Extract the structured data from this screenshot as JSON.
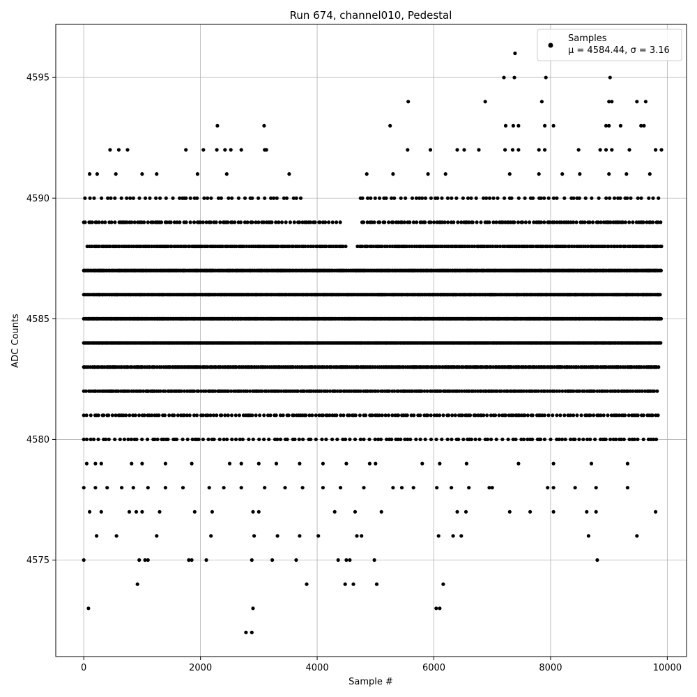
{
  "chart_data": {
    "type": "scatter",
    "title": "Run 674, channel010, Pedestal",
    "xlabel": "Sample #",
    "ylabel": "ADC Counts",
    "xlim": [
      -480,
      10330
    ],
    "ylim": [
      4571,
      4597.2
    ],
    "xticks": [
      0,
      2000,
      4000,
      6000,
      8000,
      10000
    ],
    "yticks": [
      4575,
      4580,
      4585,
      4590,
      4595
    ],
    "grid": true,
    "legend_position": "top-right",
    "series": [
      {
        "name": "Samples",
        "stat_label": "μ = 4584.44, σ = 3.16",
        "color": "#000000",
        "n_samples": 10000,
        "x_range": [
          0,
          9900
        ],
        "level_bands": [
          {
            "adc": 4580,
            "x": [
              0,
              9850
            ],
            "step": 65
          },
          {
            "adc": 4581,
            "x": [
              0,
              9850
            ],
            "step": 45
          },
          {
            "adc": 4582,
            "x": [
              0,
              9850
            ],
            "step": 32
          },
          {
            "adc": 4583,
            "x": [
              0,
              9850
            ],
            "step": 26
          },
          {
            "adc": 4584,
            "x": [
              0,
              9900
            ],
            "step": 18
          },
          {
            "adc": 4585,
            "x": [
              0,
              9900
            ],
            "step": 18
          },
          {
            "adc": 4586,
            "x": [
              0,
              9900
            ],
            "step": 18
          },
          {
            "adc": 4587,
            "x": [
              0,
              9900
            ],
            "step": 20
          },
          {
            "adc": 4588,
            "x": [
              60,
              9900
            ],
            "step": 30
          },
          {
            "adc": 4589,
            "x": [
              0,
              9900
            ],
            "step": 45
          },
          {
            "adc": 4590,
            "x": [
              20,
              9850
            ],
            "step": 80
          }
        ],
        "level_gaps": [
          {
            "adc": 4589,
            "x": [
              4400,
              4750
            ]
          },
          {
            "adc": 4590,
            "x": [
              3800,
              4700
            ]
          },
          {
            "adc": 4588,
            "x": [
              4500,
              4650
            ]
          }
        ],
        "points": [
          [
            0,
            4575
          ],
          [
            80,
            4573
          ],
          [
            220,
            4576
          ],
          [
            560,
            4576
          ],
          [
            780,
            4577
          ],
          [
            920,
            4574
          ],
          [
            950,
            4575
          ],
          [
            1050,
            4575
          ],
          [
            1100,
            4575
          ],
          [
            1250,
            4576
          ],
          [
            1800,
            4575
          ],
          [
            1850,
            4575
          ],
          [
            2100,
            4575
          ],
          [
            2180,
            4576
          ],
          [
            2780,
            4572
          ],
          [
            2880,
            4572
          ],
          [
            2900,
            4573
          ],
          [
            2880,
            4575
          ],
          [
            2920,
            4576
          ],
          [
            3230,
            4575
          ],
          [
            3320,
            4576
          ],
          [
            3640,
            4575
          ],
          [
            3700,
            4576
          ],
          [
            3820,
            4574
          ],
          [
            4020,
            4576
          ],
          [
            4360,
            4575
          ],
          [
            4480,
            4574
          ],
          [
            4500,
            4575
          ],
          [
            4560,
            4575
          ],
          [
            4620,
            4574
          ],
          [
            4680,
            4576
          ],
          [
            4760,
            4576
          ],
          [
            4980,
            4575
          ],
          [
            5020,
            4574
          ],
          [
            6040,
            4573
          ],
          [
            6100,
            4573
          ],
          [
            6160,
            4574
          ],
          [
            6080,
            4576
          ],
          [
            6330,
            4576
          ],
          [
            6470,
            4576
          ],
          [
            8650,
            4576
          ],
          [
            8800,
            4575
          ],
          [
            9480,
            4576
          ],
          [
            9800,
            4577
          ],
          [
            100,
            4577
          ],
          [
            300,
            4577
          ],
          [
            900,
            4577
          ],
          [
            1000,
            4577
          ],
          [
            1300,
            4577
          ],
          [
            1900,
            4577
          ],
          [
            2200,
            4577
          ],
          [
            2900,
            4577
          ],
          [
            3000,
            4577
          ],
          [
            4300,
            4577
          ],
          [
            4650,
            4577
          ],
          [
            5100,
            4577
          ],
          [
            6400,
            4577
          ],
          [
            6550,
            4577
          ],
          [
            7300,
            4577
          ],
          [
            7650,
            4577
          ],
          [
            8050,
            4577
          ],
          [
            8620,
            4577
          ],
          [
            8780,
            4577
          ],
          [
            0,
            4578
          ],
          [
            200,
            4578
          ],
          [
            400,
            4578
          ],
          [
            650,
            4578
          ],
          [
            850,
            4578
          ],
          [
            1100,
            4578
          ],
          [
            1400,
            4578
          ],
          [
            1700,
            4578
          ],
          [
            2150,
            4578
          ],
          [
            2400,
            4578
          ],
          [
            2700,
            4578
          ],
          [
            3100,
            4578
          ],
          [
            3450,
            4578
          ],
          [
            3750,
            4578
          ],
          [
            4100,
            4578
          ],
          [
            4400,
            4578
          ],
          [
            4800,
            4578
          ],
          [
            5300,
            4578
          ],
          [
            5450,
            4578
          ],
          [
            5650,
            4578
          ],
          [
            6050,
            4578
          ],
          [
            6300,
            4578
          ],
          [
            6600,
            4578
          ],
          [
            6950,
            4578
          ],
          [
            7000,
            4578
          ],
          [
            7950,
            4578
          ],
          [
            8050,
            4578
          ],
          [
            8420,
            4578
          ],
          [
            8780,
            4578
          ],
          [
            9320,
            4578
          ],
          [
            50,
            4579
          ],
          [
            200,
            4579
          ],
          [
            300,
            4579
          ],
          [
            820,
            4579
          ],
          [
            1000,
            4579
          ],
          [
            1400,
            4579
          ],
          [
            1850,
            4579
          ],
          [
            2500,
            4579
          ],
          [
            2700,
            4579
          ],
          [
            3000,
            4579
          ],
          [
            3300,
            4579
          ],
          [
            3700,
            4579
          ],
          [
            4100,
            4579
          ],
          [
            4500,
            4579
          ],
          [
            4900,
            4579
          ],
          [
            5000,
            4579
          ],
          [
            5800,
            4579
          ],
          [
            6100,
            4579
          ],
          [
            6560,
            4579
          ],
          [
            7450,
            4579
          ],
          [
            8050,
            4579
          ],
          [
            8700,
            4579
          ],
          [
            9320,
            4579
          ],
          [
            100,
            4591
          ],
          [
            230,
            4591
          ],
          [
            550,
            4591
          ],
          [
            1000,
            4591
          ],
          [
            1250,
            4591
          ],
          [
            1950,
            4591
          ],
          [
            2450,
            4591
          ],
          [
            3520,
            4591
          ],
          [
            4850,
            4591
          ],
          [
            5300,
            4591
          ],
          [
            5900,
            4591
          ],
          [
            6200,
            4591
          ],
          [
            7300,
            4591
          ],
          [
            7800,
            4591
          ],
          [
            8200,
            4591
          ],
          [
            8500,
            4591
          ],
          [
            9000,
            4591
          ],
          [
            9300,
            4591
          ],
          [
            9700,
            4591
          ],
          [
            450,
            4592
          ],
          [
            600,
            4592
          ],
          [
            750,
            4592
          ],
          [
            1750,
            4592
          ],
          [
            2050,
            4592
          ],
          [
            2280,
            4592
          ],
          [
            2420,
            4592
          ],
          [
            2520,
            4592
          ],
          [
            2700,
            4592
          ],
          [
            3100,
            4592
          ],
          [
            3130,
            4592
          ],
          [
            5550,
            4592
          ],
          [
            5940,
            4592
          ],
          [
            6400,
            4592
          ],
          [
            6520,
            4592
          ],
          [
            6770,
            4592
          ],
          [
            7220,
            4592
          ],
          [
            7350,
            4592
          ],
          [
            7450,
            4592
          ],
          [
            7800,
            4592
          ],
          [
            7900,
            4592
          ],
          [
            8480,
            4592
          ],
          [
            8850,
            4592
          ],
          [
            8950,
            4592
          ],
          [
            9050,
            4592
          ],
          [
            9350,
            4592
          ],
          [
            9800,
            4592
          ],
          [
            9900,
            4592
          ],
          [
            2290,
            4593
          ],
          [
            3090,
            4593
          ],
          [
            5250,
            4593
          ],
          [
            7230,
            4593
          ],
          [
            7360,
            4593
          ],
          [
            7450,
            4593
          ],
          [
            7900,
            4593
          ],
          [
            8050,
            4593
          ],
          [
            8950,
            4593
          ],
          [
            9000,
            4593
          ],
          [
            9200,
            4593
          ],
          [
            9550,
            4593
          ],
          [
            9600,
            4593
          ],
          [
            5560,
            4594
          ],
          [
            6880,
            4594
          ],
          [
            7850,
            4594
          ],
          [
            9000,
            4594
          ],
          [
            9050,
            4594
          ],
          [
            9480,
            4594
          ],
          [
            9630,
            4594
          ],
          [
            7200,
            4595
          ],
          [
            7380,
            4595
          ],
          [
            7920,
            4595
          ],
          [
            9020,
            4595
          ],
          [
            7390,
            4596
          ]
        ]
      }
    ]
  }
}
